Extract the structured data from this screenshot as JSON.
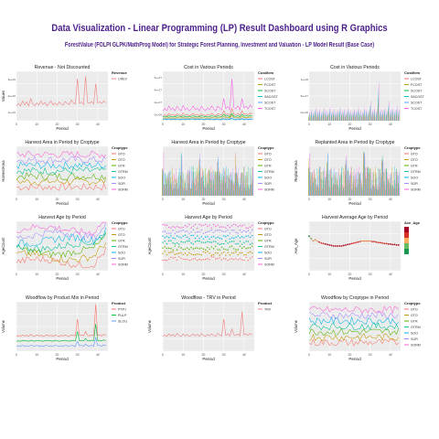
{
  "header": {
    "title": "Data Visualization - Linear Programming (LP) Result Dashboard using R Graphics",
    "subtitle": "ForestValue (FOLPI GLPK/MathProg Model) for Strategic Forest Planning, Investment and Valuation - LP Model Result (Base Case)"
  },
  "chart_data": [
    {
      "id": "p1",
      "type": "line",
      "title": "Revenue - Not Discounted",
      "xlabel": "Period",
      "ylabel": "Values",
      "xlim": [
        0,
        45
      ],
      "xticks": [
        0,
        10,
        20,
        30,
        40
      ],
      "ylim": [
        0,
        10
      ],
      "yticklabels": [
        "1e+06",
        "2e+06",
        "3e+06"
      ],
      "legend_title": "Revenue",
      "series": [
        {
          "name": "CREV",
          "color": "#f08080",
          "values": [
            3,
            3.5,
            3,
            4,
            3.2,
            3.8,
            3,
            4.5,
            3.4,
            3,
            3.6,
            3.2,
            4,
            3.3,
            3.7,
            3,
            3.5,
            4,
            3.2,
            3.6,
            3.1,
            3.8,
            3.4,
            3.2,
            3.9,
            3.5,
            3.3,
            4.2,
            3.6,
            3.4,
            8.5,
            3.5,
            3.8,
            3.3,
            9,
            3.7,
            3.5,
            3.9,
            3.4,
            7.5,
            3.6,
            3.8,
            3.5,
            4,
            3.6
          ]
        }
      ]
    },
    {
      "id": "p2",
      "type": "line",
      "title": "Cost in Various Periods",
      "xlabel": "Period",
      "ylabel": "",
      "xlim": [
        0,
        45
      ],
      "xticks": [
        0,
        10,
        20,
        30,
        40
      ],
      "ylim": [
        0,
        10
      ],
      "yticklabels": [
        "0e+00",
        "2e+07",
        "4e+07",
        "6e+07"
      ],
      "legend_title": "CostItem",
      "series": [
        {
          "name": "LCOST",
          "color": "#f8766d",
          "values": [
            1,
            1.2,
            1,
            1.5,
            1.1,
            1.3,
            1,
            1.4,
            1.2,
            1,
            1.6,
            1.1,
            1.3,
            1,
            1.2,
            1.5,
            1.1,
            1.3,
            1,
            1.4,
            1.2,
            1,
            1.3,
            1.1,
            1.5,
            1.2,
            1,
            1.4,
            1.3,
            1.1,
            2,
            1.2,
            1.4,
            1.1,
            2.5,
            1.3,
            1.2,
            1.5,
            1.1,
            2,
            1.3,
            1.4,
            1.2,
            1.6,
            1.3
          ]
        },
        {
          "name": "FCOST",
          "color": "#b79f00",
          "values": [
            0.5,
            0.6,
            0.5,
            0.7,
            0.5,
            0.6,
            0.5,
            0.7,
            0.6,
            0.5,
            0.7,
            0.5,
            0.6,
            0.5,
            0.6,
            0.7,
            0.5,
            0.6,
            0.5,
            0.7,
            0.6,
            0.5,
            0.6,
            0.5,
            0.7,
            0.6,
            0.5,
            0.7,
            0.6,
            0.5,
            0.9,
            0.6,
            0.7,
            0.5,
            1.2,
            0.6,
            0.6,
            0.7,
            0.5,
            0.9,
            0.6,
            0.7,
            0.6,
            0.8,
            0.6
          ]
        },
        {
          "name": "SCOST",
          "color": "#00ba38",
          "values": [
            0.8,
            0.9,
            0.8,
            1,
            0.8,
            0.9,
            0.8,
            1,
            0.9,
            0.8,
            1,
            0.8,
            0.9,
            0.8,
            0.9,
            1,
            0.8,
            0.9,
            0.8,
            1,
            0.9,
            0.8,
            0.9,
            0.8,
            1,
            0.9,
            0.8,
            1,
            0.9,
            0.8,
            1.3,
            0.9,
            1,
            0.8,
            1.5,
            0.9,
            0.9,
            1,
            0.8,
            1.3,
            0.9,
            1,
            0.9,
            1.1,
            0.9
          ]
        },
        {
          "name": "SACOST",
          "color": "#00bfc4",
          "values": [
            0.2,
            0.3,
            0.2,
            0.3,
            0.2,
            0.3,
            0.2,
            0.3,
            0.2,
            0.2,
            0.3,
            0.2,
            0.3,
            0.2,
            0.3,
            0.3,
            0.2,
            0.3,
            0.2,
            0.3,
            0.2,
            0.2,
            0.3,
            0.2,
            0.3,
            0.2,
            0.2,
            0.3,
            0.2,
            0.2,
            0.4,
            0.2,
            0.3,
            0.2,
            0.5,
            0.2,
            0.2,
            0.3,
            0.2,
            0.4,
            0.2,
            0.3,
            0.2,
            0.3,
            0.2
          ]
        },
        {
          "name": "SCOST",
          "color": "#619cff",
          "values": [
            0.3,
            0.4,
            0.3,
            0.4,
            0.3,
            0.4,
            0.3,
            0.4,
            0.3,
            0.3,
            0.4,
            0.3,
            0.4,
            0.3,
            0.4,
            0.4,
            0.3,
            0.4,
            0.3,
            0.4,
            0.3,
            0.3,
            0.4,
            0.3,
            0.4,
            0.3,
            0.3,
            0.4,
            0.3,
            0.3,
            0.5,
            0.3,
            0.4,
            0.3,
            0.6,
            0.3,
            0.3,
            0.4,
            0.3,
            0.5,
            0.3,
            0.4,
            0.3,
            0.4,
            0.3
          ]
        },
        {
          "name": "TCOST",
          "color": "#f564e3",
          "values": [
            2,
            2.5,
            2,
            3,
            2.2,
            2.6,
            2,
            2.9,
            2.4,
            2,
            3.1,
            2.2,
            2.6,
            2,
            2.4,
            3,
            2.2,
            2.6,
            2,
            2.9,
            2.4,
            2,
            2.6,
            2.2,
            3,
            2.4,
            2,
            2.9,
            2.6,
            2.2,
            4.5,
            2.4,
            2.9,
            2.2,
            8.5,
            2.6,
            2.4,
            3,
            2.2,
            4.5,
            2.6,
            2.9,
            2.4,
            3.2,
            2.6
          ]
        }
      ]
    },
    {
      "id": "p3",
      "type": "bar",
      "title": "Cost in Various Periods",
      "xlabel": "Period",
      "ylabel": "",
      "xlim": [
        0,
        45
      ],
      "xticks": [
        0,
        10,
        20,
        30,
        40
      ],
      "ylim": [
        0,
        10
      ],
      "yticklabels": [
        "0e+00",
        "5e+07",
        "1e+08"
      ],
      "legend_title": "CostItem",
      "series_names": [
        "LCOST",
        "FCOST",
        "SCOST",
        "SACOST",
        "SCOST",
        "TCOST"
      ],
      "colors": [
        "#f8766d",
        "#b79f00",
        "#00ba38",
        "#00bfc4",
        "#619cff",
        "#f564e3"
      ],
      "values": [
        2,
        2.5,
        2,
        3,
        2.2,
        2.6,
        2,
        2.9,
        2.4,
        2,
        3.1,
        2.2,
        2.6,
        2,
        2.4,
        3,
        2.2,
        2.6,
        2,
        2.9,
        2.4,
        2,
        2.6,
        2.2,
        3,
        2.4,
        2,
        2.9,
        2.6,
        2.2,
        4.5,
        2.4,
        2.9,
        2.2,
        8.5,
        2.6,
        2.4,
        3,
        2.2,
        4.5,
        2.6,
        2.9,
        2.4,
        3.2,
        2.6
      ]
    },
    {
      "id": "p4",
      "type": "line",
      "title": "Harvest Area in Period by Croptype",
      "xlabel": "Period",
      "ylabel": "HarvestArea",
      "xlim": [
        0,
        45
      ],
      "xticks": [
        0,
        10,
        20,
        30,
        40
      ],
      "ylim": [
        0,
        10
      ],
      "yticklabels": [],
      "legend_title": "Croptype",
      "series_names": [
        "GTO",
        "GTO",
        "GTR",
        "GTRM",
        "SOO",
        "SOR",
        "SORM"
      ],
      "colors": [
        "#f8766d",
        "#c49a00",
        "#53b400",
        "#00c094",
        "#00b6eb",
        "#a58aff",
        "#fb61d7"
      ]
    },
    {
      "id": "p5",
      "type": "bar",
      "title": "Harvest Area in Period by Croptype",
      "xlabel": "Period",
      "ylabel": "",
      "xlim": [
        0,
        45
      ],
      "xticks": [
        0,
        10,
        20,
        30,
        40
      ],
      "ylim": [
        0,
        10
      ],
      "yticklabels": [],
      "legend_title": "Croptype",
      "series_names": [
        "GTO",
        "GTO",
        "GTR",
        "GTRM",
        "SOO",
        "SOR",
        "SORM"
      ],
      "colors": [
        "#f8766d",
        "#c49a00",
        "#53b400",
        "#00c094",
        "#00b6eb",
        "#a58aff",
        "#fb61d7"
      ]
    },
    {
      "id": "p6",
      "type": "bar",
      "title": "Replanted Area in Period by Croptype",
      "xlabel": "Period",
      "ylabel": "ReplantArea",
      "xlim": [
        0,
        45
      ],
      "xticks": [
        0,
        10,
        20,
        30,
        40
      ],
      "ylim": [
        0,
        10
      ],
      "yticklabels": [],
      "legend_title": "Croptype",
      "series_names": [
        "GTO",
        "GTO",
        "GTR",
        "GTRM",
        "SOO",
        "SOR",
        "SORM"
      ],
      "colors": [
        "#f8766d",
        "#c49a00",
        "#53b400",
        "#00c094",
        "#00b6eb",
        "#a58aff",
        "#fb61d7"
      ]
    },
    {
      "id": "p7",
      "type": "line",
      "title": "Harvest Age by Period",
      "xlabel": "Period",
      "ylabel": "AgeCount",
      "xlim": [
        0,
        45
      ],
      "xticks": [
        0,
        10,
        20,
        30,
        40
      ],
      "ylim": [
        0,
        10
      ],
      "yticklabels": [],
      "legend_title": "Croptype",
      "series_names": [
        "GTO",
        "GTO",
        "GTR",
        "GTRM",
        "SOO",
        "SOR",
        "SORM"
      ],
      "colors": [
        "#f8766d",
        "#c49a00",
        "#53b400",
        "#00c094",
        "#00b6eb",
        "#a58aff",
        "#fb61d7"
      ]
    },
    {
      "id": "p8",
      "type": "scatter",
      "title": "Harvest Age by Period",
      "xlabel": "Period",
      "ylabel": "AgeCount",
      "xlim": [
        0,
        45
      ],
      "xticks": [
        0,
        10,
        20,
        30,
        40
      ],
      "ylim": [
        0,
        10
      ],
      "yticklabels": [],
      "legend_title": "Croptype",
      "series_names": [
        "GTO",
        "GTO",
        "GTR",
        "GTRM",
        "SOO",
        "SOR",
        "SORM"
      ],
      "colors": [
        "#f8766d",
        "#c49a00",
        "#53b400",
        "#00c094",
        "#00b6eb",
        "#a58aff",
        "#fb61d7"
      ]
    },
    {
      "id": "p9",
      "type": "scatter",
      "title": "Harvest Average Age by Period",
      "xlabel": "Period",
      "ylabel": "Ave_Age",
      "xlim": [
        0,
        45
      ],
      "xticks": [
        0,
        10,
        20,
        30,
        40
      ],
      "ylim": [
        0,
        10
      ],
      "yticklabels": [],
      "legend_title": "Ave_Age",
      "gradient": [
        "#a50026",
        "#d73027",
        "#fdae61",
        "#66bd63",
        "#1a9850"
      ],
      "values": [
        7,
        6.5,
        6,
        6.3,
        6,
        5.8,
        5.6,
        5.5,
        5.4,
        5.3,
        5.2,
        5.1,
        5,
        5,
        5,
        5,
        5,
        5.1,
        5.2,
        5.3,
        5.4,
        5.5,
        5.6,
        5.7,
        5.8,
        5.9,
        6,
        6,
        6,
        6,
        6,
        5.9,
        5.9,
        5.8,
        5.7,
        5.7,
        5.6,
        5.5,
        5.5,
        5.4,
        5.4,
        5.3,
        5.3,
        5.2,
        5.2
      ]
    },
    {
      "id": "p10",
      "type": "line",
      "title": "Woodflow by Product Mix in Period",
      "xlabel": "Period",
      "ylabel": "Volume",
      "xlim": [
        0,
        45
      ],
      "xticks": [
        0,
        10,
        20,
        30,
        40
      ],
      "ylim": [
        0,
        10
      ],
      "yticklabels": [],
      "legend_title": "Product",
      "series": [
        {
          "name": "PTPJ",
          "color": "#f8766d",
          "values": [
            3,
            3.2,
            3,
            3.3,
            3.1,
            3.2,
            3,
            3.4,
            3.1,
            3,
            3.3,
            3.1,
            3.2,
            3,
            3.1,
            3.3,
            3.1,
            3.2,
            3,
            3.3,
            3.1,
            3,
            3.2,
            3.1,
            3.3,
            3.1,
            3,
            3.3,
            3.2,
            3.1,
            6.5,
            3.2,
            3.3,
            3.1,
            4,
            3.2,
            3.1,
            3.3,
            3.1,
            9.5,
            3.2,
            3.3,
            3.1,
            3.4,
            3.2
          ]
        },
        {
          "name": "PULP",
          "color": "#00ba38",
          "values": [
            2,
            2.1,
            2,
            2.2,
            2.1,
            2.1,
            2,
            2.2,
            2.1,
            2,
            2.2,
            2.1,
            2.1,
            2,
            2.1,
            2.2,
            2.1,
            2.1,
            2,
            2.2,
            2.1,
            2,
            2.1,
            2.1,
            2.2,
            2.1,
            2,
            2.2,
            2.1,
            2.1,
            4,
            2.1,
            2.2,
            2.1,
            2.6,
            2.1,
            2.1,
            2.2,
            2.1,
            5.5,
            2.1,
            2.2,
            2.1,
            2.3,
            2.1
          ]
        },
        {
          "name": "SLOG",
          "color": "#619cff",
          "values": [
            1,
            1.1,
            1,
            1.2,
            1,
            1.1,
            1,
            1.2,
            1.1,
            1,
            1.2,
            1,
            1.1,
            1,
            1.1,
            1.2,
            1,
            1.1,
            1,
            1.2,
            1.1,
            1,
            1.1,
            1,
            1.2,
            1.1,
            1,
            1.2,
            1.1,
            1,
            2,
            1.1,
            1.2,
            1,
            1.4,
            1.1,
            1,
            1.2,
            1,
            2.8,
            1.1,
            1.2,
            1,
            1.3,
            1.1
          ]
        }
      ]
    },
    {
      "id": "p11",
      "type": "line",
      "title": "Woodflow - TRV in Period",
      "xlabel": "Period",
      "ylabel": "Volume",
      "xlim": [
        0,
        45
      ],
      "xticks": [
        0,
        10,
        20,
        30,
        40
      ],
      "ylim": [
        0,
        10
      ],
      "yticklabels": [],
      "legend_title": "Product",
      "series": [
        {
          "name": "TRV",
          "color": "#f08080",
          "values": [
            3,
            3.3,
            3,
            3.5,
            3.1,
            3.4,
            3,
            3.6,
            3.2,
            3,
            3.5,
            3.1,
            3.4,
            3,
            3.2,
            3.5,
            3.1,
            3.4,
            3,
            3.6,
            3.2,
            3,
            3.4,
            3.1,
            3.5,
            3.2,
            3,
            3.6,
            3.3,
            3.1,
            6.5,
            3.2,
            3.5,
            3.1,
            4.5,
            3.3,
            3.2,
            3.5,
            3.1,
            8,
            3.3,
            3.5,
            3.2,
            3.6,
            3.3
          ]
        }
      ]
    },
    {
      "id": "p12",
      "type": "line",
      "title": "Woodflow by Croptype in Period",
      "xlabel": "Period",
      "ylabel": "Volume",
      "xlim": [
        0,
        45
      ],
      "xticks": [
        0,
        10,
        20,
        30,
        40
      ],
      "ylim": [
        0,
        10
      ],
      "yticklabels": [],
      "legend_title": "Croptype",
      "series_names": [
        "GTO",
        "GTO",
        "GTR",
        "GTRM",
        "SOO",
        "SOR",
        "SORM"
      ],
      "colors": [
        "#f8766d",
        "#c49a00",
        "#53b400",
        "#00c094",
        "#00b6eb",
        "#a58aff",
        "#fb61d7"
      ]
    }
  ]
}
